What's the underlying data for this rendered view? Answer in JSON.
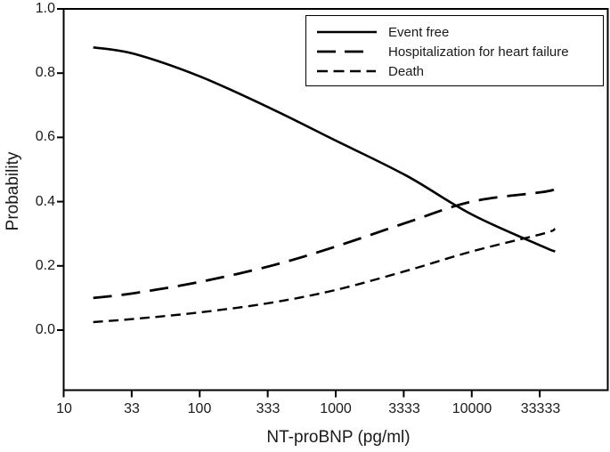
{
  "figure": {
    "background_color": "#ffffff",
    "line_color": "#000000",
    "text_color": "#1a1a1a"
  },
  "chart_data": {
    "type": "line",
    "title": "",
    "xlabel": "NT-proBNP (pg/ml)",
    "ylabel": "Probability",
    "x_scale": "log",
    "xlim": [
      10,
      100000
    ],
    "ylim": [
      -0.19,
      1.0
    ],
    "grid": false,
    "legend_position": "top-right",
    "x_tick_values": [
      10,
      33,
      100,
      333,
      1000,
      3333,
      10000,
      33333
    ],
    "x_tick_labels": [
      "10",
      "33",
      "100",
      "333",
      "1000",
      "3333",
      "10000",
      "33333"
    ],
    "y_tick_values": [
      1.0,
      0.8,
      0.6,
      0.4,
      0.2,
      0.0
    ],
    "y_tick_labels": [
      "1.0",
      "0.8",
      "0.6",
      "0.4",
      "0.2",
      "0.0"
    ],
    "series": [
      {
        "name": "Event free",
        "line_style": "solid",
        "x": [
          16.5,
          33,
          100,
          333,
          1000,
          3333,
          10000,
          33333,
          41000
        ],
        "y": [
          0.88,
          0.86,
          0.79,
          0.69,
          0.59,
          0.48,
          0.36,
          0.26,
          0.245
        ]
      },
      {
        "name": "Hospitalization for heart failure",
        "line_style": "long-dash",
        "x": [
          16.5,
          33,
          100,
          333,
          1000,
          3333,
          10000,
          33333,
          41000
        ],
        "y": [
          0.1,
          0.115,
          0.15,
          0.2,
          0.26,
          0.335,
          0.4,
          0.43,
          0.44
        ]
      },
      {
        "name": "Death",
        "line_style": "short-dash",
        "x": [
          16.5,
          33,
          100,
          333,
          1000,
          3333,
          10000,
          33333,
          41000
        ],
        "y": [
          0.025,
          0.035,
          0.055,
          0.085,
          0.125,
          0.185,
          0.245,
          0.3,
          0.315
        ]
      }
    ]
  }
}
